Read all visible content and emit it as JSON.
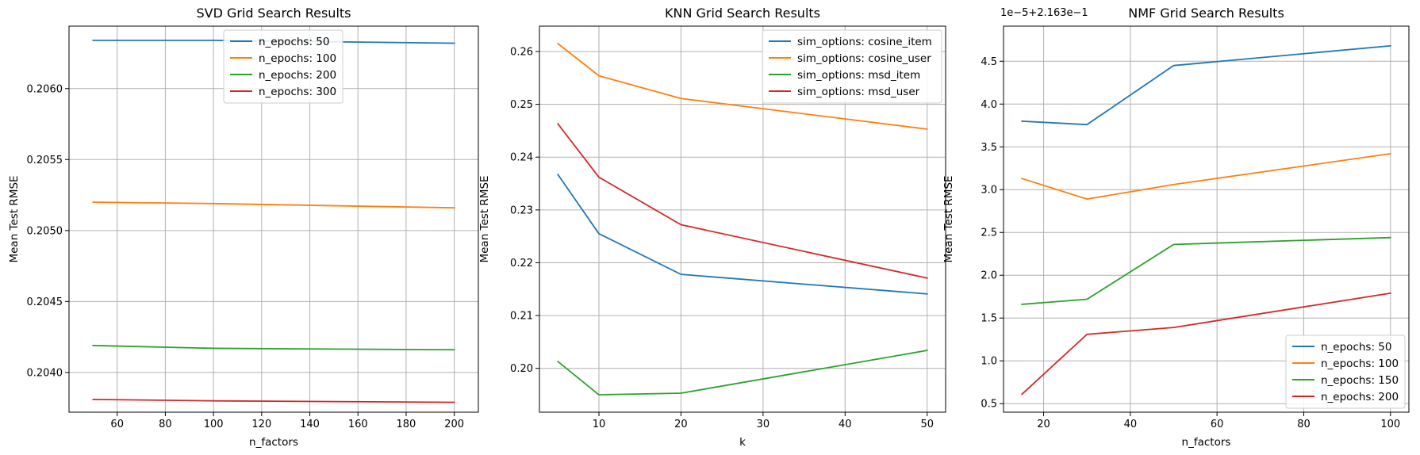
{
  "chart_data": [
    {
      "type": "line",
      "title": "SVD Grid Search Results",
      "xlabel": "n_factors",
      "ylabel": "Mean Test RMSE",
      "x": [
        50,
        100,
        200
      ],
      "xlim": [
        40,
        210
      ],
      "ylim": [
        0.20372,
        0.20644
      ],
      "xticks": [
        60,
        80,
        100,
        120,
        140,
        160,
        180,
        200
      ],
      "xtick_labels": [
        "60",
        "80",
        "100",
        "120",
        "140",
        "160",
        "180",
        "200"
      ],
      "yticks": [
        0.204,
        0.2045,
        0.205,
        0.2055,
        0.206
      ],
      "ytick_labels": [
        "0.2040",
        "0.2045",
        "0.2050",
        "0.2055",
        "0.2060"
      ],
      "offset_text": "",
      "grid": true,
      "legend_position": "top-center",
      "series": [
        {
          "name": "n_epochs: 50",
          "color": "#1f77b4",
          "values": [
            0.20634,
            0.20634,
            0.20632
          ]
        },
        {
          "name": "n_epochs: 100",
          "color": "#ff7f0e",
          "values": [
            0.2052,
            0.20519,
            0.20516
          ]
        },
        {
          "name": "n_epochs: 200",
          "color": "#2ca02c",
          "values": [
            0.20419,
            0.20417,
            0.20416
          ]
        },
        {
          "name": "n_epochs: 300",
          "color": "#d62728",
          "values": [
            0.20381,
            0.2038,
            0.20379
          ]
        }
      ]
    },
    {
      "type": "line",
      "title": "KNN Grid Search Results",
      "xlabel": "k",
      "ylabel": "Mean Test RMSE",
      "x": [
        5,
        10,
        20,
        50
      ],
      "xlim": [
        2.75,
        52.25
      ],
      "ylim": [
        0.1917,
        0.2648
      ],
      "xticks": [
        10,
        20,
        30,
        40,
        50
      ],
      "xtick_labels": [
        "10",
        "20",
        "30",
        "40",
        "50"
      ],
      "yticks": [
        0.2,
        0.21,
        0.22,
        0.23,
        0.24,
        0.25,
        0.26
      ],
      "ytick_labels": [
        "0.20",
        "0.21",
        "0.22",
        "0.23",
        "0.24",
        "0.25",
        "0.26"
      ],
      "offset_text": "",
      "grid": true,
      "legend_position": "top-right",
      "series": [
        {
          "name": "sim_options: cosine_item",
          "color": "#1f77b4",
          "values": [
            0.2367,
            0.2255,
            0.2178,
            0.2141
          ]
        },
        {
          "name": "sim_options: cosine_user",
          "color": "#ff7f0e",
          "values": [
            0.2615,
            0.2554,
            0.2511,
            0.2453
          ]
        },
        {
          "name": "sim_options: msd_item",
          "color": "#2ca02c",
          "values": [
            0.2013,
            0.195,
            0.1953,
            0.2034
          ]
        },
        {
          "name": "sim_options: msd_user",
          "color": "#d62728",
          "values": [
            0.2463,
            0.2362,
            0.2272,
            0.2171
          ]
        }
      ]
    },
    {
      "type": "line",
      "title": "NMF Grid Search Results",
      "xlabel": "n_factors",
      "ylabel": "Mean Test RMSE",
      "x": [
        15,
        30,
        50,
        100
      ],
      "xlim": [
        10.75,
        104.25
      ],
      "ylim": [
        0.4,
        4.91
      ],
      "y_units_note": "",
      "xticks": [
        20,
        40,
        60,
        80,
        100
      ],
      "xtick_labels": [
        "20",
        "40",
        "60",
        "80",
        "100"
      ],
      "yticks": [
        0.5,
        1.0,
        1.5,
        2.0,
        2.5,
        3.0,
        3.5,
        4.0,
        4.5
      ],
      "ytick_labels": [
        "0.5",
        "1.0",
        "1.5",
        "2.0",
        "2.5",
        "3.0",
        "3.5",
        "4.0",
        "4.5"
      ],
      "offset_text": "1e−5+2.163e−1",
      "grid": true,
      "legend_position": "bottom-right",
      "series": [
        {
          "name": "n_epochs: 50",
          "color": "#1f77b4",
          "values": [
            3.8,
            3.76,
            4.45,
            4.68
          ]
        },
        {
          "name": "n_epochs: 100",
          "color": "#ff7f0e",
          "values": [
            3.13,
            2.89,
            3.06,
            3.42
          ]
        },
        {
          "name": "n_epochs: 150",
          "color": "#2ca02c",
          "values": [
            1.66,
            1.72,
            2.36,
            2.44
          ]
        },
        {
          "name": "n_epochs: 200",
          "color": "#d62728",
          "values": [
            0.61,
            1.31,
            1.39,
            1.79
          ]
        }
      ]
    }
  ]
}
